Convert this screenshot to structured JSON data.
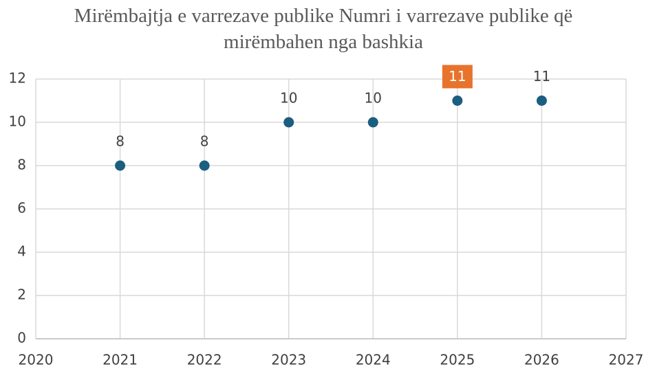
{
  "chart_data": {
    "type": "scatter",
    "title": "Mirëmbajtja e varrezave publike Numri i varrezave publike që mirëmbahen nga bashkia",
    "x": [
      2021,
      2022,
      2023,
      2024,
      2025,
      2026
    ],
    "values": [
      8,
      8,
      10,
      10,
      11,
      11
    ],
    "color": "#1b5e80",
    "highlight": {
      "x": 2025,
      "color": "#e8732c"
    },
    "xlim": [
      2020,
      2027
    ],
    "xticks": [
      2020,
      2021,
      2022,
      2023,
      2024,
      2025,
      2026,
      2027
    ],
    "ylim": [
      0,
      12
    ],
    "yticks": [
      0,
      2,
      4,
      6,
      8,
      10,
      12
    ],
    "grid": true
  }
}
